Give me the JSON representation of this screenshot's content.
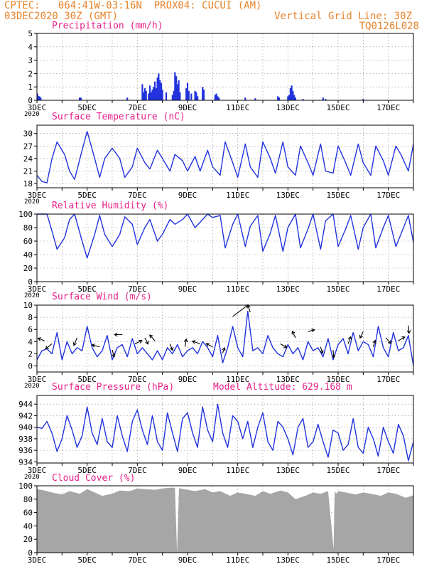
{
  "header": {
    "line1": "CPTEC:   064:41W-03:16N  PROX04: CUCUI (AM)",
    "line2": "03DEC2020 30Z (GMT)",
    "right1": "Vertical Grid Line: 30Z",
    "right2": "TQ0126L028"
  },
  "colors": {
    "header": "#e8832a",
    "title": "#e8208a",
    "series": "#2233dd",
    "bars": "#2233dd",
    "cloud": "#a6a6a6",
    "grid": "#8a8a8a"
  },
  "x_axis": {
    "tick_labels": [
      "3DEC",
      "5DEC",
      "7DEC",
      "9DEC",
      "11DEC",
      "13DEC",
      "15DEC",
      "17DEC"
    ],
    "year_label": "2020"
  },
  "chart_data": [
    {
      "type": "bar",
      "title": "Precipitation (mm/h)",
      "ylim": [
        0,
        5
      ],
      "yticks": [
        "0",
        "1",
        "2",
        "3",
        "4",
        "5"
      ],
      "events": [
        {
          "day": 3.02,
          "value": 0.5
        },
        {
          "day": 3.05,
          "value": 0.3
        },
        {
          "day": 3.1,
          "value": 0.3
        },
        {
          "day": 3.15,
          "value": 0.2
        },
        {
          "day": 4.7,
          "value": 0.2
        },
        {
          "day": 4.75,
          "value": 0.2
        },
        {
          "day": 6.6,
          "value": 0.2
        },
        {
          "day": 7.2,
          "value": 1.2
        },
        {
          "day": 7.25,
          "value": 0.6
        },
        {
          "day": 7.3,
          "value": 0.9
        },
        {
          "day": 7.35,
          "value": 0.7
        },
        {
          "day": 7.45,
          "value": 0.5
        },
        {
          "day": 7.5,
          "value": 1.1
        },
        {
          "day": 7.55,
          "value": 0.6
        },
        {
          "day": 7.6,
          "value": 0.8
        },
        {
          "day": 7.65,
          "value": 1.0
        },
        {
          "day": 7.7,
          "value": 1.4
        },
        {
          "day": 7.75,
          "value": 0.9
        },
        {
          "day": 7.8,
          "value": 1.7
        },
        {
          "day": 7.85,
          "value": 2.0
        },
        {
          "day": 7.9,
          "value": 1.5
        },
        {
          "day": 7.95,
          "value": 1.3
        },
        {
          "day": 8.0,
          "value": 0.8
        },
        {
          "day": 8.15,
          "value": 0.6
        },
        {
          "day": 8.4,
          "value": 0.4
        },
        {
          "day": 8.45,
          "value": 0.7
        },
        {
          "day": 8.5,
          "value": 2.1
        },
        {
          "day": 8.55,
          "value": 1.8
        },
        {
          "day": 8.6,
          "value": 1.2
        },
        {
          "day": 8.65,
          "value": 1.5
        },
        {
          "day": 8.7,
          "value": 0.6
        },
        {
          "day": 8.95,
          "value": 0.9
        },
        {
          "day": 9.0,
          "value": 1.3
        },
        {
          "day": 9.05,
          "value": 0.7
        },
        {
          "day": 9.15,
          "value": 0.5
        },
        {
          "day": 9.3,
          "value": 0.7
        },
        {
          "day": 9.35,
          "value": 0.6
        },
        {
          "day": 9.4,
          "value": 0.3
        },
        {
          "day": 9.6,
          "value": 1.0
        },
        {
          "day": 9.65,
          "value": 0.8
        },
        {
          "day": 10.1,
          "value": 0.4
        },
        {
          "day": 10.15,
          "value": 0.5
        },
        {
          "day": 10.2,
          "value": 0.3
        },
        {
          "day": 10.25,
          "value": 0.2
        },
        {
          "day": 11.3,
          "value": 0.2
        },
        {
          "day": 11.7,
          "value": 0.15
        },
        {
          "day": 12.6,
          "value": 0.3
        },
        {
          "day": 12.65,
          "value": 0.2
        },
        {
          "day": 13.0,
          "value": 0.3
        },
        {
          "day": 13.05,
          "value": 0.4
        },
        {
          "day": 13.1,
          "value": 0.9
        },
        {
          "day": 13.15,
          "value": 1.1
        },
        {
          "day": 13.2,
          "value": 0.7
        },
        {
          "day": 13.25,
          "value": 0.4
        },
        {
          "day": 13.3,
          "value": 0.2
        },
        {
          "day": 13.6,
          "value": 0.1
        },
        {
          "day": 14.4,
          "value": 0.2
        },
        {
          "day": 14.5,
          "value": 0.1
        },
        {
          "day": 16.0,
          "value": 0.1
        }
      ]
    },
    {
      "type": "line",
      "title": "Surface Temperature (nC)",
      "ylim": [
        17,
        32
      ],
      "yticks": [
        "18",
        "21",
        "24",
        "27",
        "30"
      ],
      "series": [
        {
          "x": [
            3,
            3.2,
            3.4,
            3.6,
            3.8,
            4.1,
            4.3,
            4.5,
            4.8,
            5.0,
            5.3,
            5.5,
            5.7,
            6.0,
            6.3,
            6.5,
            6.8,
            7.0,
            7.3,
            7.5,
            7.8,
            8.0,
            8.3,
            8.5,
            8.8,
            9.0,
            9.3,
            9.5,
            9.8,
            10.0,
            10.3,
            10.5,
            10.8,
            11.0,
            11.3,
            11.5,
            11.8,
            12.0,
            12.3,
            12.5,
            12.8,
            13.0,
            13.3,
            13.5,
            13.8,
            14.0,
            14.3,
            14.5,
            14.8,
            15.0,
            15.3,
            15.5,
            15.8,
            16.0,
            16.3,
            16.5,
            16.8,
            17.0,
            17.3,
            17.5,
            17.8,
            18.0
          ],
          "y": [
            20,
            18.5,
            18.2,
            24,
            28,
            25,
            21,
            19,
            26,
            30.5,
            24,
            19.5,
            24,
            26.5,
            24,
            19.5,
            22,
            26.5,
            23,
            21.5,
            26,
            24,
            21,
            25,
            23.5,
            21,
            24.5,
            21,
            26,
            22,
            20,
            28,
            23,
            19.5,
            27.5,
            22,
            19.5,
            28,
            24,
            20.5,
            28,
            22,
            20,
            27,
            23,
            20,
            27.5,
            21,
            20.5,
            27,
            23,
            20,
            27.5,
            23,
            20,
            27,
            23.5,
            20,
            27,
            25,
            21,
            27.5
          ]
        }
      ]
    },
    {
      "type": "line",
      "title": "Relative Humidity (%)",
      "ylim": [
        0,
        100
      ],
      "yticks": [
        "0",
        "20",
        "40",
        "60",
        "80",
        "100"
      ],
      "series": [
        {
          "x": [
            3,
            3.2,
            3.4,
            3.6,
            3.8,
            4.1,
            4.3,
            4.5,
            4.8,
            5.0,
            5.3,
            5.5,
            5.7,
            6.0,
            6.3,
            6.5,
            6.8,
            7.0,
            7.3,
            7.5,
            7.8,
            8.0,
            8.3,
            8.5,
            8.8,
            9.0,
            9.3,
            9.5,
            9.8,
            10.0,
            10.3,
            10.5,
            10.8,
            11.0,
            11.3,
            11.5,
            11.8,
            12.0,
            12.3,
            12.5,
            12.8,
            13.0,
            13.3,
            13.5,
            13.8,
            14.0,
            14.3,
            14.5,
            14.8,
            15.0,
            15.3,
            15.5,
            15.8,
            16.0,
            16.3,
            16.5,
            16.8,
            17.0,
            17.3,
            17.5,
            17.8,
            18.0
          ],
          "y": [
            100,
            100,
            100,
            75,
            48,
            65,
            92,
            100,
            60,
            35,
            70,
            98,
            70,
            52,
            70,
            96,
            85,
            55,
            80,
            92,
            60,
            70,
            92,
            85,
            92,
            100,
            80,
            88,
            100,
            95,
            98,
            50,
            85,
            100,
            52,
            82,
            98,
            45,
            72,
            98,
            45,
            80,
            100,
            50,
            78,
            100,
            48,
            90,
            100,
            52,
            78,
            98,
            48,
            80,
            100,
            50,
            80,
            98,
            52,
            70,
            98,
            58
          ]
        }
      ]
    },
    {
      "type": "line",
      "title": "Surface Wind (m/s)",
      "ylim": [
        -1,
        10
      ],
      "yticks": [
        "0",
        "2",
        "4",
        "6",
        "8",
        "10"
      ],
      "series": [
        {
          "x": [
            3,
            3.2,
            3.4,
            3.6,
            3.8,
            4.0,
            4.2,
            4.4,
            4.6,
            4.8,
            5.0,
            5.2,
            5.4,
            5.6,
            5.8,
            6.0,
            6.2,
            6.4,
            6.6,
            6.8,
            7.0,
            7.2,
            7.4,
            7.6,
            7.8,
            8.0,
            8.2,
            8.4,
            8.6,
            8.8,
            9.0,
            9.2,
            9.4,
            9.6,
            9.8,
            10.0,
            10.2,
            10.4,
            10.6,
            10.8,
            11.0,
            11.2,
            11.4,
            11.6,
            11.8,
            12.0,
            12.2,
            12.4,
            12.6,
            12.8,
            13.0,
            13.2,
            13.4,
            13.6,
            13.8,
            14.0,
            14.2,
            14.4,
            14.6,
            14.8,
            15.0,
            15.2,
            15.4,
            15.6,
            15.8,
            16.0,
            16.2,
            16.4,
            16.6,
            16.8,
            17.0,
            17.2,
            17.4,
            17.6,
            17.8,
            18.0
          ],
          "y": [
            1,
            2.5,
            2.8,
            2,
            5.5,
            1,
            4,
            2,
            3,
            2.5,
            6.5,
            3,
            1.5,
            2.5,
            5,
            1,
            3,
            3.5,
            1.5,
            4.5,
            2,
            3,
            2,
            1,
            2.5,
            1,
            3,
            2,
            3.5,
            1.5,
            2.5,
            3,
            2,
            4,
            3,
            1.5,
            5,
            0.5,
            3,
            6.5,
            3,
            1.5,
            9,
            2.5,
            3,
            2,
            5,
            3,
            2,
            1.5,
            3.5,
            2,
            3,
            1,
            4,
            2.5,
            3,
            1.5,
            4.5,
            1,
            3.5,
            4.5,
            2,
            5.5,
            2.5,
            4,
            3.5,
            1.5,
            6.5,
            3,
            1.5,
            5.5,
            2.5,
            3,
            5,
            0
          ]
        }
      ],
      "wind_vectors": [
        {
          "day": 3.3,
          "u": -1,
          "v": 0.4
        },
        {
          "day": 3.6,
          "u": -1,
          "v": -0.8
        },
        {
          "day": 4.6,
          "u": -0.5,
          "v": -1.2
        },
        {
          "day": 5.5,
          "u": -1.2,
          "v": 0.3
        },
        {
          "day": 6.0,
          "u": 0.3,
          "v": -1.1
        },
        {
          "day": 6.4,
          "u": -1.2,
          "v": 0
        },
        {
          "day": 6.9,
          "u": 1.1,
          "v": 0.5
        },
        {
          "day": 7.3,
          "u": 0.5,
          "v": -1
        },
        {
          "day": 7.7,
          "u": -0.8,
          "v": 0.9
        },
        {
          "day": 8.3,
          "u": 0.4,
          "v": -1
        },
        {
          "day": 8.9,
          "u": 0.2,
          "v": 1.2
        },
        {
          "day": 9.5,
          "u": -1.2,
          "v": 0.4
        },
        {
          "day": 10.0,
          "u": -1,
          "v": 0.5
        },
        {
          "day": 10.4,
          "u": 0.3,
          "v": 0.8
        },
        {
          "day": 10.8,
          "u": 2.4,
          "v": 1.8
        },
        {
          "day": 11.5,
          "u": -0.4,
          "v": 1.1
        },
        {
          "day": 12.7,
          "u": 1,
          "v": -0.6
        },
        {
          "day": 13.3,
          "u": -0.5,
          "v": 1
        },
        {
          "day": 13.8,
          "u": 1,
          "v": 0.3
        },
        {
          "day": 14.3,
          "u": 0.3,
          "v": -1
        },
        {
          "day": 14.8,
          "u": 0.1,
          "v": -1.2
        },
        {
          "day": 15.4,
          "u": 0.4,
          "v": 1.1
        },
        {
          "day": 16.0,
          "u": -0.5,
          "v": -1
        },
        {
          "day": 16.4,
          "u": 0.3,
          "v": 1
        },
        {
          "day": 16.9,
          "u": 0.8,
          "v": -0.9
        },
        {
          "day": 17.4,
          "u": 1,
          "v": 0.6
        },
        {
          "day": 17.8,
          "u": 0.1,
          "v": -1.2
        }
      ]
    },
    {
      "type": "line",
      "title": "Surface Pressure (hPa)",
      "subtitle": "Model Altitude: 629.168  m",
      "ylim": [
        933.8,
        945.5
      ],
      "yticks": [
        "934",
        "936",
        "938",
        "940",
        "942",
        "944"
      ],
      "series": [
        {
          "x": [
            3,
            3.2,
            3.4,
            3.6,
            3.8,
            4.0,
            4.2,
            4.4,
            4.6,
            4.8,
            5.0,
            5.2,
            5.4,
            5.6,
            5.8,
            6.0,
            6.2,
            6.4,
            6.6,
            6.8,
            7.0,
            7.2,
            7.4,
            7.6,
            7.8,
            8.0,
            8.2,
            8.4,
            8.6,
            8.8,
            9.0,
            9.2,
            9.4,
            9.6,
            9.8,
            10.0,
            10.2,
            10.4,
            10.6,
            10.8,
            11.0,
            11.2,
            11.4,
            11.6,
            11.8,
            12.0,
            12.2,
            12.4,
            12.6,
            12.8,
            13.0,
            13.2,
            13.4,
            13.6,
            13.8,
            14.0,
            14.2,
            14.4,
            14.6,
            14.8,
            15.0,
            15.2,
            15.4,
            15.6,
            15.8,
            16.0,
            16.2,
            16.4,
            16.6,
            16.8,
            17.0,
            17.2,
            17.4,
            17.6,
            17.8,
            18.0
          ],
          "y": [
            940,
            939.8,
            941,
            939,
            935.8,
            938,
            942,
            939.5,
            936.5,
            938.5,
            943.5,
            939,
            937,
            941.5,
            937.5,
            936.5,
            942,
            938.5,
            935.8,
            941,
            943,
            939.5,
            937,
            942,
            937.5,
            936,
            942.5,
            939,
            935.8,
            941.5,
            942.5,
            939,
            936.5,
            943.5,
            939.5,
            937.5,
            944,
            939,
            936.5,
            942,
            941,
            938,
            941,
            936.5,
            940,
            942.5,
            937.5,
            936,
            941,
            940,
            938,
            935.2,
            940,
            941.5,
            936.5,
            937.5,
            940.5,
            937.5,
            934.8,
            939.5,
            939,
            936,
            937,
            941.5,
            936.5,
            935.5,
            940,
            938,
            935,
            940,
            937.5,
            935.5,
            940.5,
            938.5,
            934.2,
            937.5
          ]
        }
      ]
    },
    {
      "type": "area",
      "title": "Cloud Cover (%)",
      "ylim": [
        0,
        100
      ],
      "yticks": [
        "0",
        "20",
        "40",
        "60",
        "80",
        "100"
      ],
      "series": [
        {
          "x": [
            3,
            3.3,
            3.6,
            4.0,
            4.3,
            4.7,
            5.0,
            5.3,
            5.6,
            6.0,
            6.3,
            6.7,
            7.0,
            7.3,
            7.7,
            8.0,
            8.3,
            8.5,
            8.58,
            8.66,
            8.7,
            9.0,
            9.3,
            9.7,
            10.0,
            10.3,
            10.7,
            11.0,
            11.3,
            11.7,
            12.0,
            12.3,
            12.7,
            13.0,
            13.3,
            13.7,
            14.0,
            14.3,
            14.6,
            14.82,
            14.86,
            14.92,
            15.0,
            15.3,
            15.7,
            16.0,
            16.3,
            16.7,
            17.0,
            17.3,
            17.7,
            18.0
          ],
          "y": [
            95,
            93,
            90,
            87,
            92,
            88,
            95,
            90,
            85,
            88,
            93,
            92,
            96,
            95,
            94,
            96,
            97,
            97,
            0,
            97,
            96,
            94,
            92,
            95,
            90,
            92,
            85,
            90,
            88,
            85,
            92,
            88,
            93,
            90,
            80,
            85,
            90,
            88,
            92,
            5,
            92,
            88,
            92,
            90,
            87,
            90,
            88,
            85,
            90,
            88,
            82,
            86
          ]
        }
      ]
    }
  ]
}
